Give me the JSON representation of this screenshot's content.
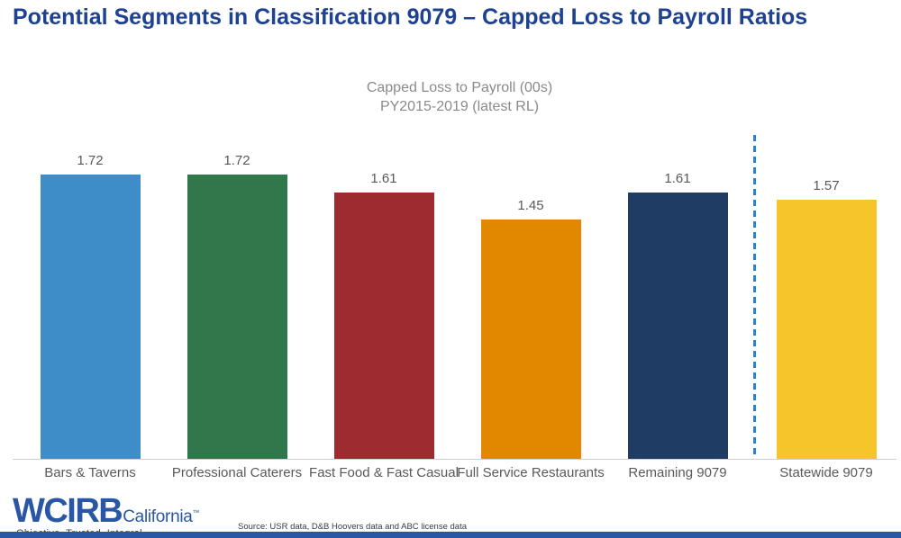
{
  "slide": {
    "title": "Potential Segments in Classification 9079 – Capped Loss to Payroll Ratios"
  },
  "chart_data": {
    "type": "bar",
    "title": "Capped Loss to Payroll (00s)",
    "subtitle": "PY2015-2019 (latest RL)",
    "categories": [
      "Bars & Taverns",
      "Professional Caterers",
      "Fast Food & Fast Casual",
      "Full Service Restaurants",
      "Remaining 9079",
      "Statewide 9079"
    ],
    "values": [
      1.72,
      1.72,
      1.61,
      1.45,
      1.61,
      1.57
    ],
    "value_labels": [
      "1.72",
      "1.72",
      "1.61",
      "1.45",
      "1.61",
      "1.57"
    ],
    "bar_colors": [
      "#3E8DC8",
      "#31774C",
      "#9E2B2F",
      "#E28800",
      "#1F3C64",
      "#F6C52A"
    ],
    "ylim": [
      0,
      1.75
    ],
    "grid": false,
    "legend": "none",
    "separator": {
      "after_category": "Remaining 9079",
      "style": "dashed",
      "color": "#2E83C6"
    }
  },
  "footer": {
    "logo_text": "WCIRB",
    "logo_suffix": "California",
    "logo_tm": "™",
    "tagline": "Objective. Trusted. Integral.",
    "source": "Source: USR data, D&B Hoovers data and ABC license data"
  },
  "colors": {
    "title_blue": "#1E4191",
    "logo_blue": "#2A57A5",
    "label_gray": "#595959",
    "subtitle_gray": "#8A8A8A",
    "axis_gray": "#CFCDCD",
    "footer_bar_blue": "#2A57A5"
  }
}
